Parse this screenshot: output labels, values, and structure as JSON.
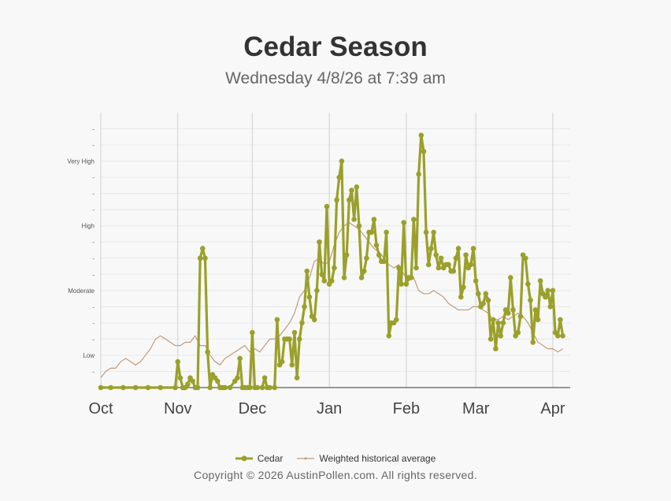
{
  "header": {
    "title": "Cedar Season",
    "subtitle": "Wednesday 4/8/26 at 7:39 am"
  },
  "footer": {
    "copyright": "Copyright © 2026 AustinPollen.com.  All rights reserved."
  },
  "chart_data": {
    "type": "line",
    "title": "Cedar Season",
    "subtitle": "Wednesday 4/8/26 at 7:39 am",
    "x_range": [
      "2025-10-01",
      "2026-04-08"
    ],
    "x_ticks": [
      "Oct",
      "Nov",
      "Dec",
      "Jan",
      "Feb",
      "Mar",
      "Apr"
    ],
    "x_tick_dates": [
      "2025-10-01",
      "2025-11-01",
      "2025-12-01",
      "2026-01-01",
      "2026-02-01",
      "2026-03-01",
      "2026-04-01"
    ],
    "ylim": [
      0,
      8.5
    ],
    "y_ticks": [
      {
        "value": 0.5,
        "label": "-"
      },
      {
        "value": 1,
        "label": "Low"
      },
      {
        "value": 1.5,
        "label": "-"
      },
      {
        "value": 2,
        "label": "-"
      },
      {
        "value": 2.5,
        "label": "-"
      },
      {
        "value": 3,
        "label": "Moderate"
      },
      {
        "value": 3.5,
        "label": "-"
      },
      {
        "value": 4,
        "label": "-"
      },
      {
        "value": 4.5,
        "label": "-"
      },
      {
        "value": 5,
        "label": "High"
      },
      {
        "value": 5.5,
        "label": "-"
      },
      {
        "value": 6,
        "label": "-"
      },
      {
        "value": 6.5,
        "label": "-"
      },
      {
        "value": 7,
        "label": "Very High"
      },
      {
        "value": 7.5,
        "label": "-"
      },
      {
        "value": 8,
        "label": "-"
      }
    ],
    "grid": true,
    "legend_position": "bottom",
    "series": [
      {
        "name": "Cedar",
        "color": "#9aa02a",
        "points": [
          [
            "2025-10-01",
            0
          ],
          [
            "2025-10-05",
            0
          ],
          [
            "2025-10-10",
            0
          ],
          [
            "2025-10-15",
            0
          ],
          [
            "2025-10-20",
            0
          ],
          [
            "2025-10-25",
            0
          ],
          [
            "2025-10-31",
            0
          ],
          [
            "2025-11-01",
            0.8
          ],
          [
            "2025-11-02",
            0.3
          ],
          [
            "2025-11-03",
            0
          ],
          [
            "2025-11-04",
            0
          ],
          [
            "2025-11-05",
            0.1
          ],
          [
            "2025-11-06",
            0.3
          ],
          [
            "2025-11-07",
            0.2
          ],
          [
            "2025-11-08",
            0
          ],
          [
            "2025-11-09",
            0
          ],
          [
            "2025-11-10",
            4
          ],
          [
            "2025-11-11",
            4.3
          ],
          [
            "2025-11-12",
            4
          ],
          [
            "2025-11-13",
            1.1
          ],
          [
            "2025-11-14",
            0
          ],
          [
            "2025-11-15",
            0.4
          ],
          [
            "2025-11-16",
            0.3
          ],
          [
            "2025-11-17",
            0.2
          ],
          [
            "2025-11-18",
            0
          ],
          [
            "2025-11-19",
            0
          ],
          [
            "2025-11-20",
            0
          ],
          [
            "2025-11-22",
            0
          ],
          [
            "2025-11-24",
            0.2
          ],
          [
            "2025-11-25",
            0.3
          ],
          [
            "2025-11-26",
            0.9
          ],
          [
            "2025-11-27",
            0
          ],
          [
            "2025-11-28",
            0
          ],
          [
            "2025-11-29",
            0
          ],
          [
            "2025-11-30",
            0
          ],
          [
            "2025-12-01",
            1.7
          ],
          [
            "2025-12-02",
            0
          ],
          [
            "2025-12-03",
            0
          ],
          [
            "2025-12-05",
            0
          ],
          [
            "2025-12-06",
            0.3
          ],
          [
            "2025-12-07",
            0
          ],
          [
            "2025-12-08",
            0
          ],
          [
            "2025-12-10",
            0
          ],
          [
            "2025-12-11",
            2.1
          ],
          [
            "2025-12-12",
            0.7
          ],
          [
            "2025-12-13",
            0.8
          ],
          [
            "2025-12-14",
            1.5
          ],
          [
            "2025-12-15",
            1.5
          ],
          [
            "2025-12-16",
            1.5
          ],
          [
            "2025-12-17",
            0.7
          ],
          [
            "2025-12-18",
            1.7
          ],
          [
            "2025-12-19",
            0.3
          ],
          [
            "2025-12-20",
            1.5
          ],
          [
            "2025-12-21",
            2
          ],
          [
            "2025-12-22",
            2.5
          ],
          [
            "2025-12-23",
            3.6
          ],
          [
            "2025-12-24",
            2.8
          ],
          [
            "2025-12-25",
            2.2
          ],
          [
            "2025-12-26",
            2.1
          ],
          [
            "2025-12-27",
            3
          ],
          [
            "2025-12-28",
            4.5
          ],
          [
            "2025-12-29",
            3.5
          ],
          [
            "2025-12-30",
            3.3
          ],
          [
            "2025-12-31",
            5.6
          ],
          [
            "2026-01-01",
            3.2
          ],
          [
            "2026-01-02",
            3.3
          ],
          [
            "2026-01-03",
            3.7
          ],
          [
            "2026-01-04",
            5.8
          ],
          [
            "2026-01-05",
            6.5
          ],
          [
            "2026-01-06",
            7
          ],
          [
            "2026-01-07",
            3.4
          ],
          [
            "2026-01-08",
            4.1
          ],
          [
            "2026-01-09",
            5.8
          ],
          [
            "2026-01-10",
            6.1
          ],
          [
            "2026-01-11",
            5.2
          ],
          [
            "2026-01-12",
            6.2
          ],
          [
            "2026-01-13",
            5
          ],
          [
            "2026-01-14",
            3.4
          ],
          [
            "2026-01-15",
            3.6
          ],
          [
            "2026-01-16",
            4
          ],
          [
            "2026-01-17",
            4.8
          ],
          [
            "2026-01-18",
            4.8
          ],
          [
            "2026-01-19",
            5.2
          ],
          [
            "2026-01-20",
            4.4
          ],
          [
            "2026-01-21",
            4.1
          ],
          [
            "2026-01-22",
            3.9
          ],
          [
            "2026-01-23",
            3.9
          ],
          [
            "2026-01-24",
            4.8
          ],
          [
            "2026-01-25",
            1.6
          ],
          [
            "2026-01-26",
            2
          ],
          [
            "2026-01-27",
            2
          ],
          [
            "2026-01-28",
            2.1
          ],
          [
            "2026-01-29",
            3.7
          ],
          [
            "2026-01-30",
            3.2
          ],
          [
            "2026-01-31",
            5.1
          ],
          [
            "2026-02-01",
            3.2
          ],
          [
            "2026-02-02",
            3.4
          ],
          [
            "2026-02-03",
            3.4
          ],
          [
            "2026-02-04",
            5.2
          ],
          [
            "2026-02-05",
            3.7
          ],
          [
            "2026-02-06",
            6.6
          ],
          [
            "2026-02-07",
            7.8
          ],
          [
            "2026-02-08",
            7.3
          ],
          [
            "2026-02-09",
            4.8
          ],
          [
            "2026-02-10",
            3.8
          ],
          [
            "2026-02-11",
            4.3
          ],
          [
            "2026-02-12",
            4.8
          ],
          [
            "2026-02-13",
            4.1
          ],
          [
            "2026-02-14",
            3.7
          ],
          [
            "2026-02-15",
            4
          ],
          [
            "2026-02-16",
            3.7
          ],
          [
            "2026-02-17",
            3.8
          ],
          [
            "2026-02-18",
            3.8
          ],
          [
            "2026-02-19",
            3.6
          ],
          [
            "2026-02-20",
            3.6
          ],
          [
            "2026-02-21",
            4
          ],
          [
            "2026-02-22",
            4.3
          ],
          [
            "2026-02-23",
            2.8
          ],
          [
            "2026-02-24",
            3.1
          ],
          [
            "2026-02-25",
            4.1
          ],
          [
            "2026-02-26",
            3.7
          ],
          [
            "2026-02-27",
            3.8
          ],
          [
            "2026-02-28",
            4.3
          ],
          [
            "2026-03-01",
            3.3
          ],
          [
            "2026-03-02",
            2.9
          ],
          [
            "2026-03-03",
            2.5
          ],
          [
            "2026-03-04",
            2.6
          ],
          [
            "2026-03-05",
            2.9
          ],
          [
            "2026-03-06",
            2.7
          ],
          [
            "2026-03-07",
            1.5
          ],
          [
            "2026-03-08",
            2.1
          ],
          [
            "2026-03-09",
            1.2
          ],
          [
            "2026-03-10",
            2
          ],
          [
            "2026-03-11",
            1.6
          ],
          [
            "2026-03-12",
            2
          ],
          [
            "2026-03-13",
            2.4
          ],
          [
            "2026-03-14",
            2.3
          ],
          [
            "2026-03-15",
            3.4
          ],
          [
            "2026-03-16",
            2.4
          ],
          [
            "2026-03-17",
            1.6
          ],
          [
            "2026-03-18",
            1.7
          ],
          [
            "2026-03-19",
            2.2
          ],
          [
            "2026-03-20",
            4.1
          ],
          [
            "2026-03-21",
            4
          ],
          [
            "2026-03-22",
            3.2
          ],
          [
            "2026-03-23",
            2.7
          ],
          [
            "2026-03-24",
            1.4
          ],
          [
            "2026-03-25",
            2.4
          ],
          [
            "2026-03-26",
            2.1
          ],
          [
            "2026-03-27",
            3.3
          ],
          [
            "2026-03-28",
            2.9
          ],
          [
            "2026-03-29",
            2.8
          ],
          [
            "2026-03-30",
            3
          ],
          [
            "2026-03-31",
            2.5
          ],
          [
            "2026-04-01",
            3
          ],
          [
            "2026-04-02",
            1.7
          ],
          [
            "2026-04-03",
            1.6
          ],
          [
            "2026-04-04",
            2.1
          ],
          [
            "2026-04-05",
            1.6
          ]
        ]
      },
      {
        "name": "Weighted historical average",
        "color": "#c09a7a",
        "points": [
          [
            "2025-10-01",
            0.3
          ],
          [
            "2025-10-03",
            0.5
          ],
          [
            "2025-10-05",
            0.6
          ],
          [
            "2025-10-07",
            0.6
          ],
          [
            "2025-10-09",
            0.8
          ],
          [
            "2025-10-11",
            0.9
          ],
          [
            "2025-10-13",
            0.8
          ],
          [
            "2025-10-15",
            0.7
          ],
          [
            "2025-10-17",
            0.8
          ],
          [
            "2025-10-19",
            1
          ],
          [
            "2025-10-21",
            1.2
          ],
          [
            "2025-10-23",
            1.5
          ],
          [
            "2025-10-25",
            1.6
          ],
          [
            "2025-10-27",
            1.5
          ],
          [
            "2025-10-29",
            1.4
          ],
          [
            "2025-10-31",
            1.3
          ],
          [
            "2025-11-02",
            1.3
          ],
          [
            "2025-11-04",
            1.4
          ],
          [
            "2025-11-06",
            1.4
          ],
          [
            "2025-11-08",
            1.6
          ],
          [
            "2025-11-10",
            1.3
          ],
          [
            "2025-11-12",
            1.3
          ],
          [
            "2025-11-14",
            1
          ],
          [
            "2025-11-16",
            0.8
          ],
          [
            "2025-11-18",
            0.7
          ],
          [
            "2025-11-20",
            0.9
          ],
          [
            "2025-11-22",
            1
          ],
          [
            "2025-11-24",
            1.1
          ],
          [
            "2025-11-26",
            1.2
          ],
          [
            "2025-11-28",
            1.3
          ],
          [
            "2025-11-30",
            1.1
          ],
          [
            "2025-12-02",
            1.2
          ],
          [
            "2025-12-04",
            1.1
          ],
          [
            "2025-12-06",
            1.3
          ],
          [
            "2025-12-08",
            1.5
          ],
          [
            "2025-12-10",
            1.5
          ],
          [
            "2025-12-12",
            1.6
          ],
          [
            "2025-12-14",
            1.8
          ],
          [
            "2025-12-16",
            2
          ],
          [
            "2025-12-18",
            2.3
          ],
          [
            "2025-12-20",
            2.8
          ],
          [
            "2025-12-22",
            3
          ],
          [
            "2025-12-24",
            3.4
          ],
          [
            "2025-12-26",
            3.9
          ],
          [
            "2025-12-28",
            4
          ],
          [
            "2025-12-30",
            3.8
          ],
          [
            "2026-01-01",
            3.9
          ],
          [
            "2026-01-03",
            4.4
          ],
          [
            "2026-01-05",
            4.8
          ],
          [
            "2026-01-07",
            5
          ],
          [
            "2026-01-09",
            5.1
          ],
          [
            "2026-01-11",
            5
          ],
          [
            "2026-01-13",
            4.9
          ],
          [
            "2026-01-15",
            4.7
          ],
          [
            "2026-01-17",
            4.5
          ],
          [
            "2026-01-19",
            4.3
          ],
          [
            "2026-01-21",
            4.2
          ],
          [
            "2026-01-23",
            4
          ],
          [
            "2026-01-25",
            3.8
          ],
          [
            "2026-01-27",
            3.7
          ],
          [
            "2026-01-29",
            3.8
          ],
          [
            "2026-01-31",
            3.5
          ],
          [
            "2026-02-02",
            3.3
          ],
          [
            "2026-02-04",
            3.4
          ],
          [
            "2026-02-06",
            3
          ],
          [
            "2026-02-08",
            2.9
          ],
          [
            "2026-02-10",
            2.9
          ],
          [
            "2026-02-12",
            3
          ],
          [
            "2026-02-14",
            2.9
          ],
          [
            "2026-02-16",
            2.8
          ],
          [
            "2026-02-18",
            2.6
          ],
          [
            "2026-02-20",
            2.5
          ],
          [
            "2026-02-22",
            2.4
          ],
          [
            "2026-02-24",
            2.4
          ],
          [
            "2026-02-26",
            2.4
          ],
          [
            "2026-02-28",
            2.5
          ],
          [
            "2026-03-02",
            2.5
          ],
          [
            "2026-03-04",
            2.4
          ],
          [
            "2026-03-06",
            2.3
          ],
          [
            "2026-03-08",
            2.1
          ],
          [
            "2026-03-10",
            2.1
          ],
          [
            "2026-03-12",
            2.2
          ],
          [
            "2026-03-14",
            2.1
          ],
          [
            "2026-03-16",
            2.2
          ],
          [
            "2026-03-18",
            2.3
          ],
          [
            "2026-03-20",
            2.2
          ],
          [
            "2026-03-22",
            2
          ],
          [
            "2026-03-24",
            1.7
          ],
          [
            "2026-03-26",
            1.4
          ],
          [
            "2026-03-28",
            1.3
          ],
          [
            "2026-03-30",
            1.2
          ],
          [
            "2026-04-01",
            1.2
          ],
          [
            "2026-04-03",
            1.1
          ],
          [
            "2026-04-05",
            1.2
          ]
        ]
      }
    ]
  }
}
